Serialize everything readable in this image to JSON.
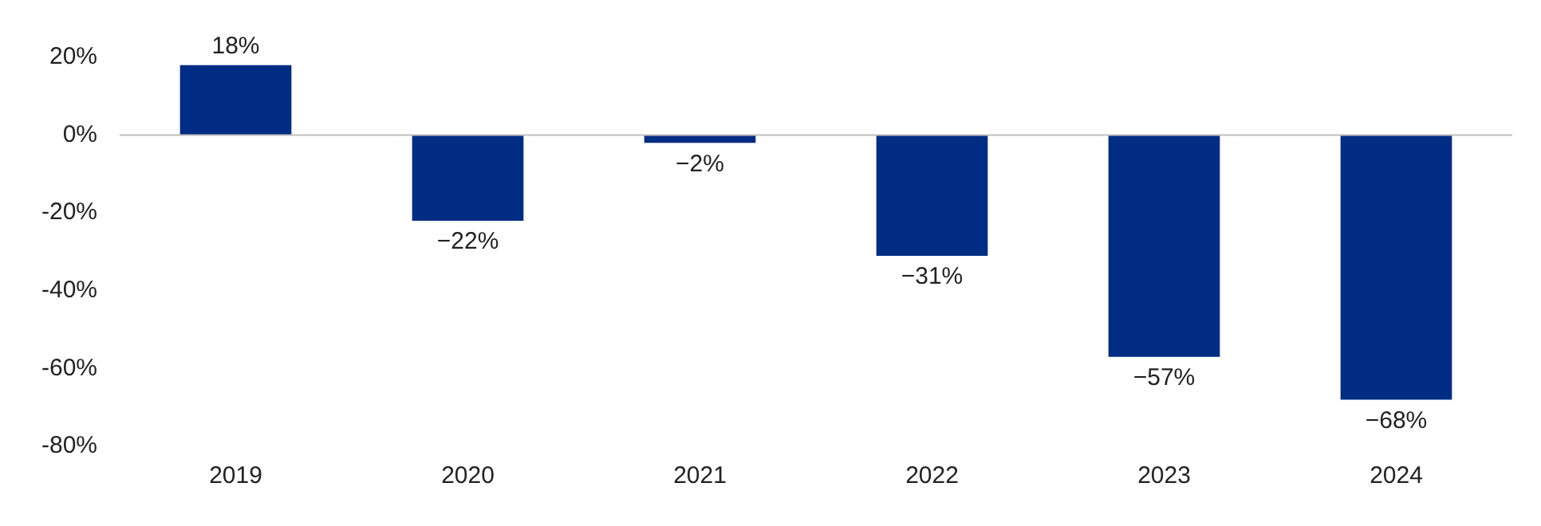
{
  "chart_data": {
    "type": "bar",
    "categories": [
      "2019",
      "2020",
      "2021",
      "2022",
      "2023",
      "2024"
    ],
    "values": [
      18,
      -22,
      -2,
      -31,
      -57,
      -68
    ],
    "value_labels": [
      "18%",
      "−22%",
      "−2%",
      "−31%",
      "−57%",
      "−68%"
    ],
    "color": "#002d84",
    "ylim": [
      -80,
      20
    ],
    "yticks": [
      {
        "value": -80,
        "label": "-80%"
      },
      {
        "value": -60,
        "label": "-60%"
      },
      {
        "value": -40,
        "label": "-40%"
      },
      {
        "value": -20,
        "label": "-20%"
      },
      {
        "value": 0,
        "label": "0%"
      },
      {
        "value": 20,
        "label": "20%"
      }
    ],
    "ref_lines": [
      {
        "axis": "y",
        "value": 0,
        "color": "#bfbfbf"
      }
    ],
    "grid": false,
    "legend": false
  }
}
